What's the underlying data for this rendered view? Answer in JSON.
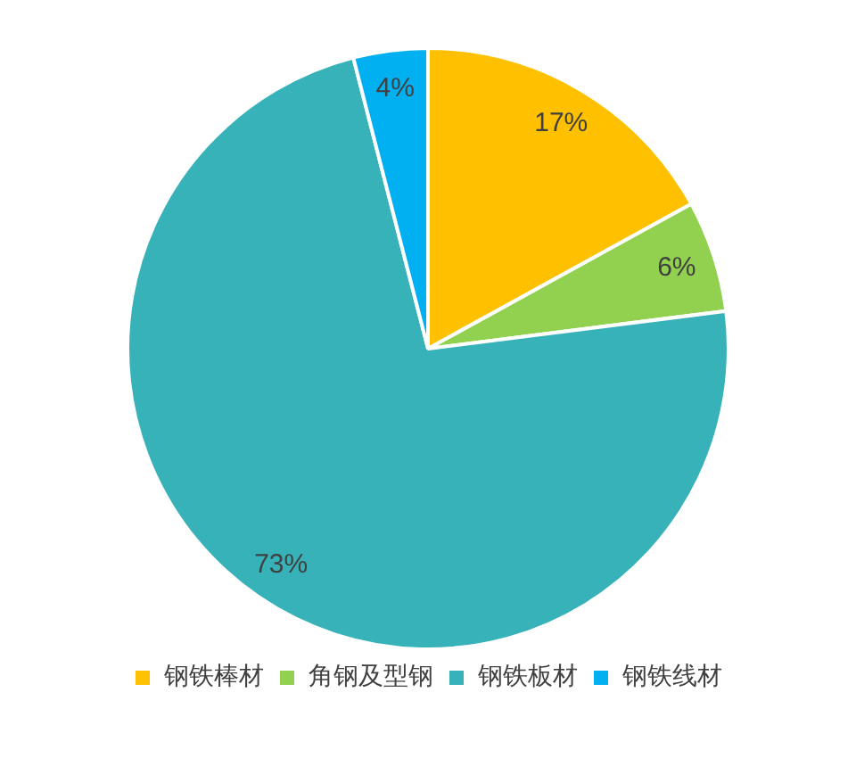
{
  "chart_data": {
    "type": "pie",
    "categories": [
      "钢铁棒材",
      "角钢及型钢",
      "钢铁板材",
      "钢铁线材"
    ],
    "values": [
      17,
      6,
      73,
      4
    ],
    "colors": [
      "#ffc000",
      "#92d050",
      "#38b2b9",
      "#00b0f0"
    ],
    "value_labels": [
      "17%",
      "6%",
      "73%",
      "4%"
    ],
    "legend": "bottom"
  }
}
